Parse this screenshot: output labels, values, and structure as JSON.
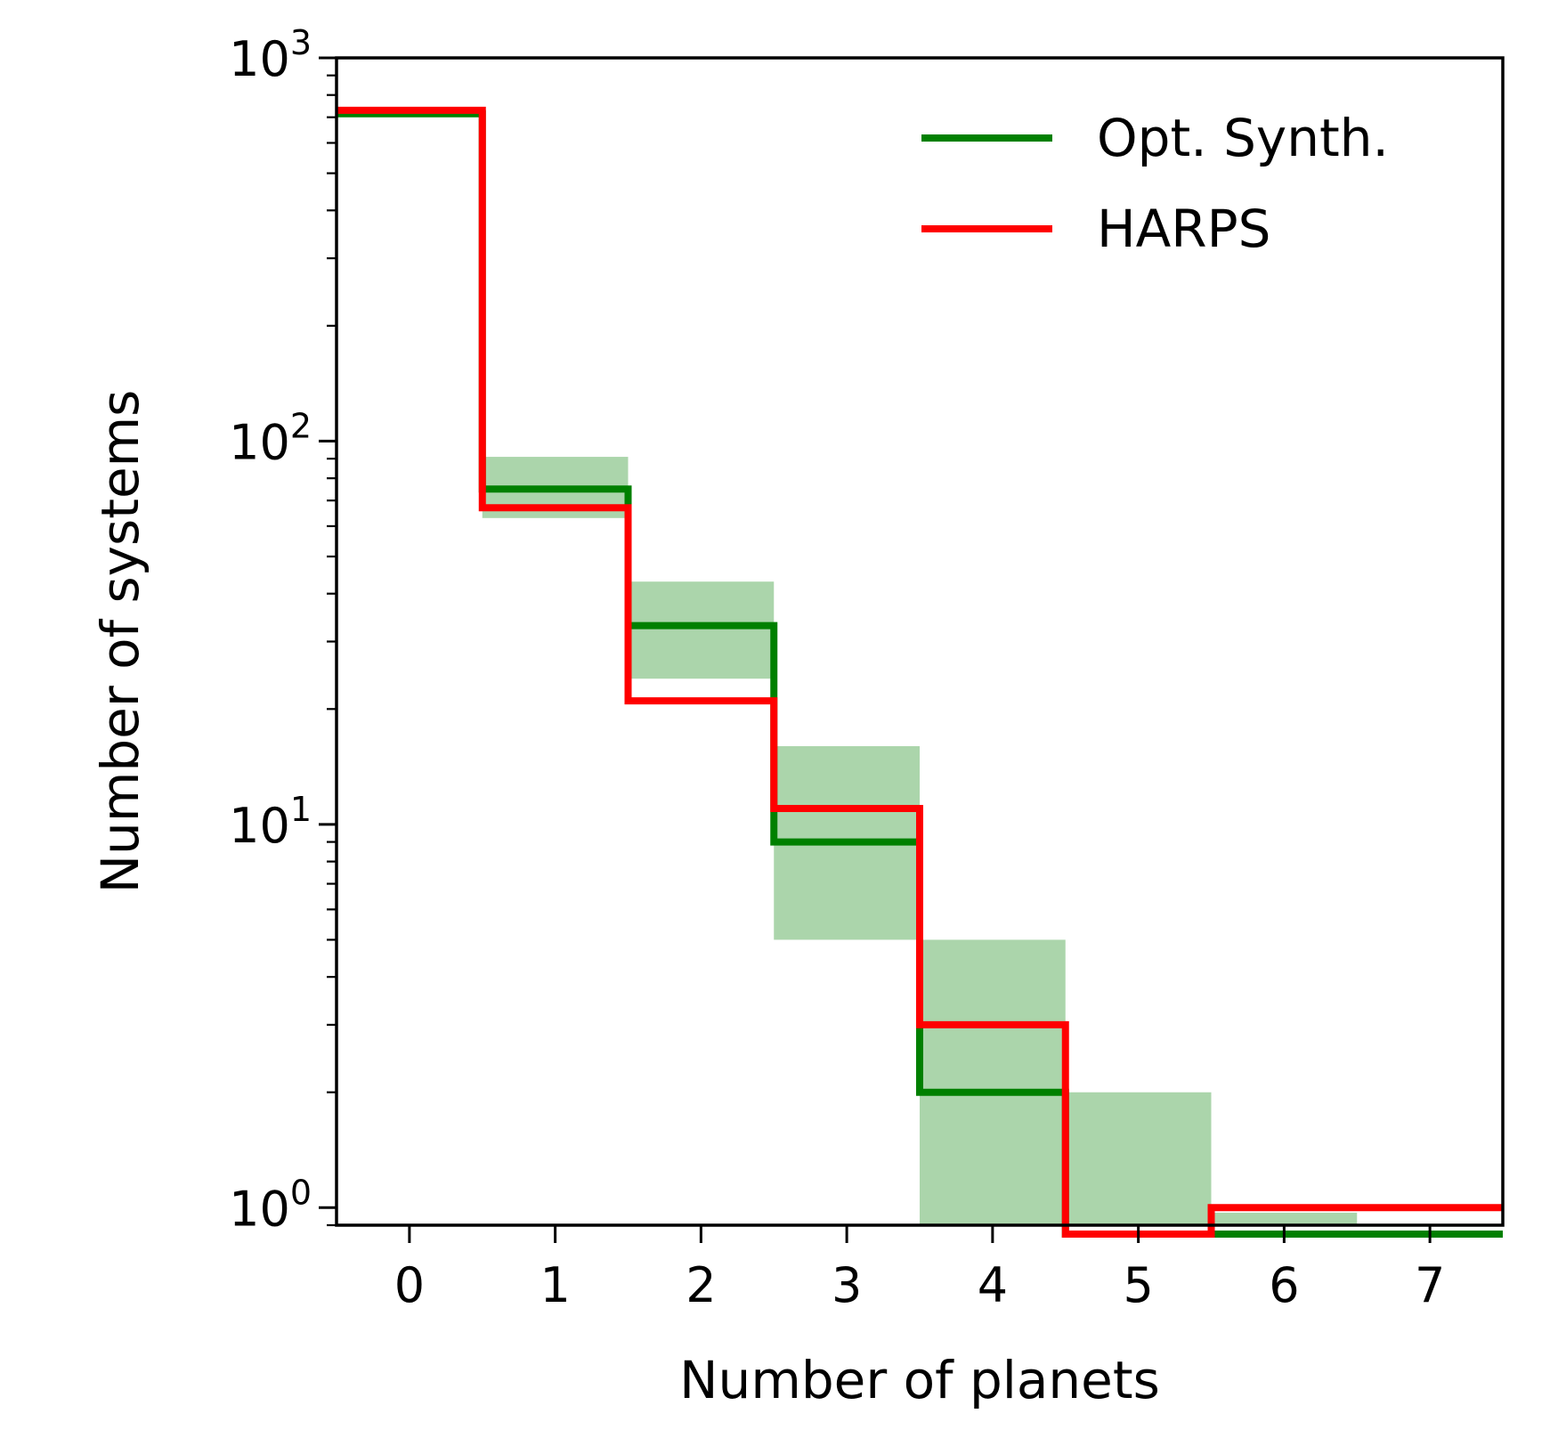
{
  "chart_data": {
    "type": "step",
    "xlabel": "Number of planets",
    "ylabel": "Number of systems",
    "xlim": [
      -0.5,
      7.5
    ],
    "ylim": [
      0.9,
      1000
    ],
    "yscale": "log",
    "x_ticks": [
      0,
      1,
      2,
      3,
      4,
      5,
      6,
      7
    ],
    "y_ticks": [
      {
        "value": 1,
        "base": "10",
        "exp": "0"
      },
      {
        "value": 10,
        "base": "10",
        "exp": "1"
      },
      {
        "value": 100,
        "base": "10",
        "exp": "2"
      },
      {
        "value": 1000,
        "base": "10",
        "exp": "3"
      }
    ],
    "legend_position": "top-right",
    "series": [
      {
        "name": "Opt. Synth.",
        "color": "#008000",
        "x": [
          0,
          1,
          2,
          3,
          4,
          5,
          6,
          7
        ],
        "values": [
          715,
          75,
          33,
          9,
          2,
          0,
          0,
          0
        ]
      },
      {
        "name": "HARPS",
        "color": "#ff0000",
        "x": [
          0,
          1,
          2,
          3,
          4,
          5,
          6,
          7
        ],
        "values": [
          730,
          67,
          21,
          11,
          3,
          0,
          1,
          1
        ]
      }
    ],
    "uncertainty_band": {
      "color": "#008000",
      "x": [
        1,
        2,
        3,
        4,
        5,
        6
      ],
      "low": [
        63,
        24,
        5,
        0.85,
        0.85,
        0.85
      ],
      "high": [
        91,
        43,
        16,
        5,
        2,
        0.97
      ]
    }
  }
}
